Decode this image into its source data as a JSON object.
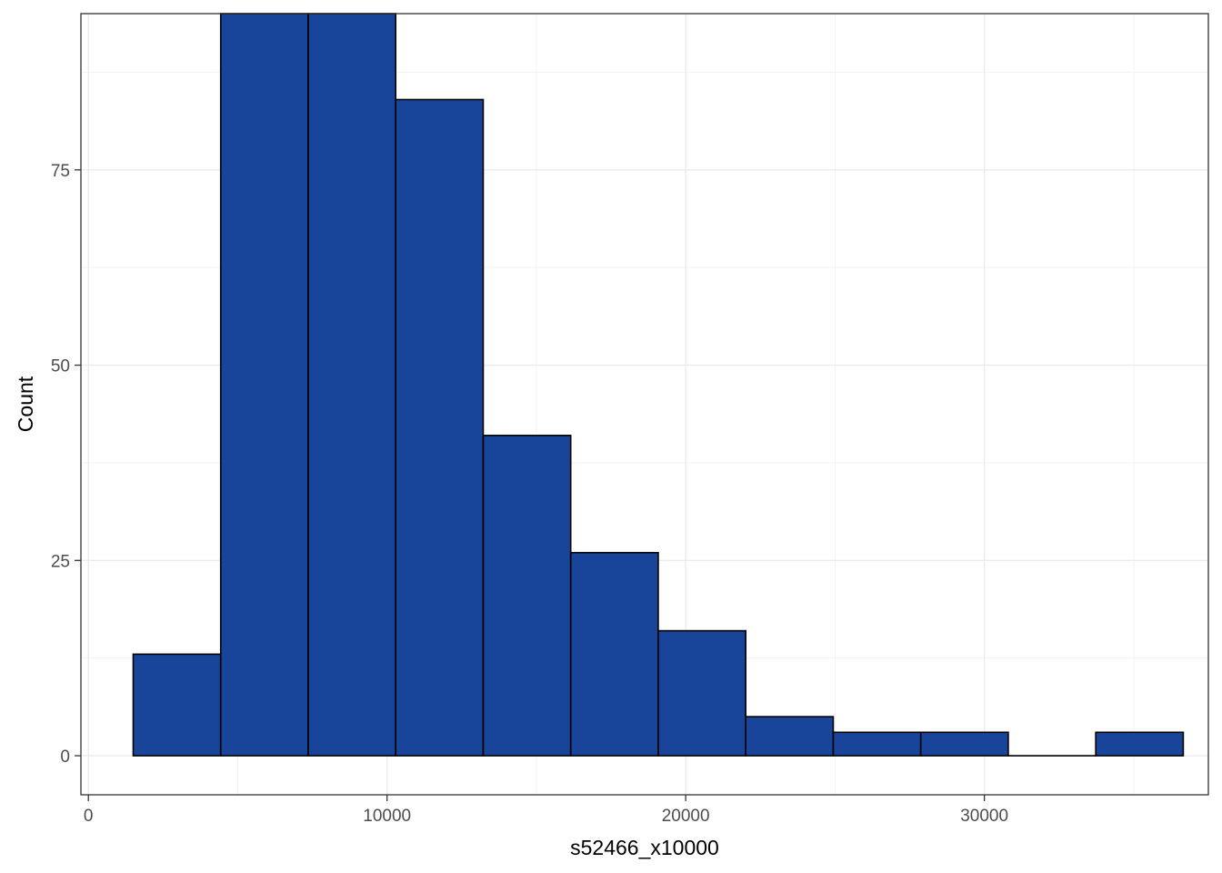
{
  "chart_data": {
    "type": "bar",
    "subtype": "histogram",
    "xlabel": "s52466_x10000",
    "ylabel": "Count",
    "xlim": [
      -250,
      37500
    ],
    "ylim": [
      -5,
      95
    ],
    "x_ticks": [
      0,
      10000,
      20000,
      30000
    ],
    "y_ticks": [
      0,
      25,
      50,
      75
    ],
    "x_tick_labels": [
      "0",
      "10000",
      "20000",
      "30000"
    ],
    "y_tick_labels": [
      "0",
      "25",
      "50",
      "75"
    ],
    "grid": true,
    "bins": [
      {
        "x0": 1500,
        "x1": 4430,
        "count": 13
      },
      {
        "x0": 4430,
        "x1": 7360,
        "count": 95
      },
      {
        "x0": 7360,
        "x1": 10290,
        "count": 95
      },
      {
        "x0": 10290,
        "x1": 13220,
        "count": 84
      },
      {
        "x0": 13220,
        "x1": 16150,
        "count": 41
      },
      {
        "x0": 16150,
        "x1": 19080,
        "count": 26
      },
      {
        "x0": 19080,
        "x1": 22010,
        "count": 16
      },
      {
        "x0": 22010,
        "x1": 24940,
        "count": 5
      },
      {
        "x0": 24940,
        "x1": 27870,
        "count": 3
      },
      {
        "x0": 27870,
        "x1": 30800,
        "count": 3
      },
      {
        "x0": 30800,
        "x1": 33730,
        "count": 0
      },
      {
        "x0": 33730,
        "x1": 36660,
        "count": 3
      }
    ],
    "colors": {
      "bar_fill": "#18449a",
      "bar_stroke": "#000000",
      "grid_major": "#ebebeb",
      "grid_minor": "#f3f3f3",
      "panel_border": "#333333",
      "tick_text": "#4d4d4d"
    }
  }
}
